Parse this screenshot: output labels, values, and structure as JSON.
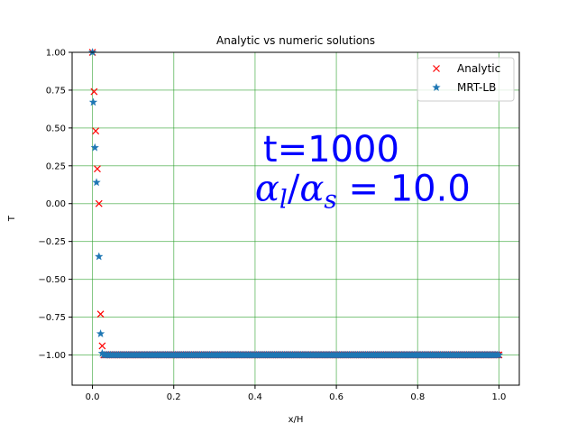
{
  "chart_data": {
    "type": "scatter",
    "title": "Analytic vs numeric solutions",
    "xlabel": "x/H",
    "ylabel": "T",
    "xlim": [
      -0.05,
      1.05
    ],
    "ylim": [
      -1.2,
      1.0
    ],
    "xticks": [
      0.0,
      0.2,
      0.4,
      0.6,
      0.8,
      1.0
    ],
    "xtick_labels": [
      "0.0",
      "0.2",
      "0.4",
      "0.6",
      "0.8",
      "1.0"
    ],
    "yticks": [
      1.0,
      0.75,
      0.5,
      0.25,
      0.0,
      -0.25,
      -0.5,
      -0.75,
      -1.0
    ],
    "ytick_labels": [
      "1.00",
      "0.75",
      "0.50",
      "0.25",
      "0.00",
      "−0.25",
      "−0.50",
      "−0.75",
      "−1.00"
    ],
    "grid": true,
    "grid_color": "#2ca02c",
    "legend_position": "top-right",
    "series": [
      {
        "name": "Analytic",
        "marker": "x",
        "color": "#ff0000",
        "head_points": [
          [
            0.0,
            1.0
          ],
          [
            0.004,
            0.74
          ],
          [
            0.008,
            0.48
          ],
          [
            0.012,
            0.23
          ],
          [
            0.016,
            0.0
          ],
          [
            0.02,
            -0.73
          ],
          [
            0.024,
            -0.94
          ]
        ],
        "tail": {
          "x_start": 0.028,
          "x_end": 1.0,
          "step": 0.004,
          "y": -1.0
        }
      },
      {
        "name": "MRT-LB",
        "marker": "*",
        "color": "#1f77b4",
        "head_points": [
          [
            0.0,
            1.0
          ],
          [
            0.002,
            0.67
          ],
          [
            0.006,
            0.37
          ],
          [
            0.01,
            0.14
          ],
          [
            0.016,
            -0.35
          ],
          [
            0.02,
            -0.86
          ],
          [
            0.024,
            -0.99
          ],
          [
            0.028,
            -1.0
          ]
        ],
        "tail": {
          "x_start": 0.032,
          "x_end": 1.0,
          "step": 0.004,
          "y": -1.0
        }
      }
    ],
    "annotations": [
      {
        "text": "t=1000",
        "x": 0.42,
        "y": 0.28
      },
      {
        "text_left": "α",
        "sub_l": "l",
        "slash": "/",
        "text_mid": "α",
        "sub_s": "s",
        "text_right": " = 10.0",
        "x": 0.4,
        "y": 0.02
      }
    ]
  }
}
